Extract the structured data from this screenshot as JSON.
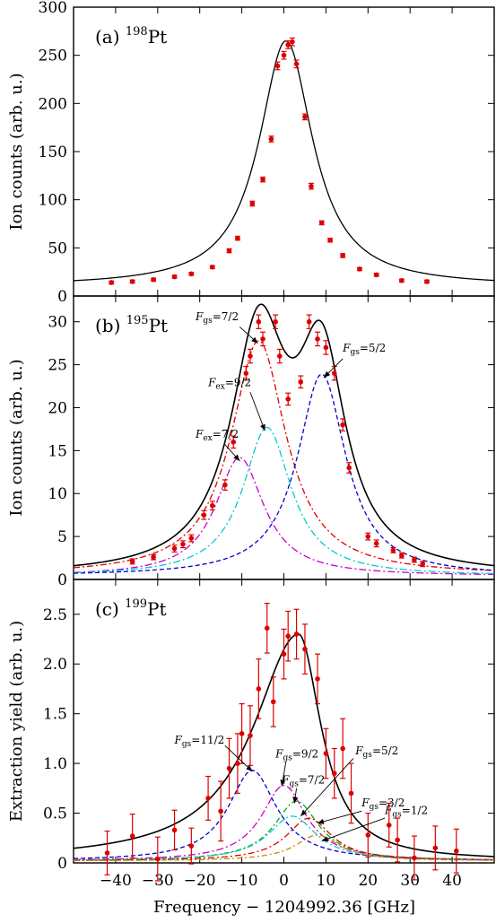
{
  "figure": {
    "xlabel": "Frequency − 1204992.36 [GHz]"
  },
  "chart_data": [
    {
      "type": "scatter",
      "panel_label": "(a)",
      "isotope_mass": "198",
      "isotope_symbol": "Pt",
      "ylabel": "Ion counts (arb. u.)",
      "xlim": [
        -50,
        50
      ],
      "ylim": [
        0,
        300
      ],
      "yticks": [
        0,
        50,
        100,
        150,
        200,
        250,
        300
      ],
      "data_points": [
        {
          "x": -41,
          "y": 14,
          "err": 1.5
        },
        {
          "x": -36,
          "y": 15,
          "err": 1.5
        },
        {
          "x": -31,
          "y": 17,
          "err": 1.5
        },
        {
          "x": -26,
          "y": 20,
          "err": 1.5
        },
        {
          "x": -22,
          "y": 23,
          "err": 1.5
        },
        {
          "x": -17,
          "y": 30,
          "err": 1.5
        },
        {
          "x": -13,
          "y": 47,
          "err": 2
        },
        {
          "x": -11,
          "y": 60,
          "err": 2
        },
        {
          "x": -7.5,
          "y": 96,
          "err": 2.5
        },
        {
          "x": -5,
          "y": 121,
          "err": 2.5
        },
        {
          "x": -3,
          "y": 163,
          "err": 3
        },
        {
          "x": -1.5,
          "y": 239,
          "err": 4
        },
        {
          "x": 0,
          "y": 250,
          "err": 4
        },
        {
          "x": 1,
          "y": 261,
          "err": 4
        },
        {
          "x": 2,
          "y": 264,
          "err": 4
        },
        {
          "x": 3,
          "y": 241,
          "err": 4
        },
        {
          "x": 5,
          "y": 186,
          "err": 3
        },
        {
          "x": 6.5,
          "y": 114,
          "err": 3
        },
        {
          "x": 9,
          "y": 76,
          "err": 2
        },
        {
          "x": 11,
          "y": 58,
          "err": 2
        },
        {
          "x": 14,
          "y": 42,
          "err": 2
        },
        {
          "x": 18,
          "y": 28,
          "err": 1.5
        },
        {
          "x": 22,
          "y": 22,
          "err": 1.5
        },
        {
          "x": 28,
          "y": 16,
          "err": 1.5
        },
        {
          "x": 34,
          "y": 15,
          "err": 1.5
        }
      ],
      "fit_curves": [
        {
          "name": "total",
          "color": "#000000",
          "dash": "",
          "center": 0.5,
          "amplitude": 255,
          "hwhm": 7.8,
          "offset": 10
        }
      ],
      "annotations": []
    },
    {
      "type": "scatter",
      "panel_label": "(b)",
      "isotope_mass": "195",
      "isotope_symbol": "Pt",
      "ylabel": "Ion counts (arb. u.)",
      "xlim": [
        -50,
        50
      ],
      "ylim": [
        0,
        33
      ],
      "yticks": [
        0,
        5,
        10,
        15,
        20,
        25,
        30
      ],
      "data_points": [
        {
          "x": -36,
          "y": 2.1,
          "err": 0.3
        },
        {
          "x": -31,
          "y": 2.6,
          "err": 0.3
        },
        {
          "x": -26,
          "y": 3.6,
          "err": 0.4
        },
        {
          "x": -24,
          "y": 4.1,
          "err": 0.4
        },
        {
          "x": -22,
          "y": 4.8,
          "err": 0.4
        },
        {
          "x": -19,
          "y": 7.5,
          "err": 0.5
        },
        {
          "x": -17,
          "y": 8.6,
          "err": 0.5
        },
        {
          "x": -14,
          "y": 11,
          "err": 0.6
        },
        {
          "x": -12,
          "y": 16,
          "err": 0.7
        },
        {
          "x": -9,
          "y": 24,
          "err": 0.8
        },
        {
          "x": -8,
          "y": 26,
          "err": 0.8
        },
        {
          "x": -6,
          "y": 30,
          "err": 0.8
        },
        {
          "x": -5,
          "y": 28,
          "err": 0.8
        },
        {
          "x": -2,
          "y": 30,
          "err": 0.8
        },
        {
          "x": -1,
          "y": 26,
          "err": 0.8
        },
        {
          "x": 1,
          "y": 21,
          "err": 0.7
        },
        {
          "x": 4,
          "y": 23,
          "err": 0.7
        },
        {
          "x": 6,
          "y": 30,
          "err": 0.8
        },
        {
          "x": 8,
          "y": 28,
          "err": 0.8
        },
        {
          "x": 10,
          "y": 27,
          "err": 0.8
        },
        {
          "x": 12,
          "y": 24,
          "err": 0.8
        },
        {
          "x": 14,
          "y": 18,
          "err": 0.7
        },
        {
          "x": 15.5,
          "y": 13,
          "err": 0.6
        },
        {
          "x": 20,
          "y": 5,
          "err": 0.4
        },
        {
          "x": 22,
          "y": 4.2,
          "err": 0.4
        },
        {
          "x": 26,
          "y": 3.4,
          "err": 0.3
        },
        {
          "x": 28,
          "y": 2.8,
          "err": 0.3
        },
        {
          "x": 31,
          "y": 2.3,
          "err": 0.3
        },
        {
          "x": 33,
          "y": 1.8,
          "err": 0.3
        }
      ],
      "fit_curves": [
        {
          "name": "Fex=7/2",
          "color": "#cc00cc",
          "dash": "8,3,2,3",
          "center": -10.5,
          "amplitude": 13.8,
          "hwhm": 7,
          "offset": 0.4
        },
        {
          "name": "Fex=9/2",
          "color": "#00cccc",
          "dash": "8,3,2,3",
          "center": -4,
          "amplitude": 17.3,
          "hwhm": 7,
          "offset": 0.4
        },
        {
          "name": "Fgs=7/2",
          "color": "#dd0000",
          "dash": "7,3,2,3",
          "center": -6,
          "amplitude": 27.3,
          "hwhm": 8,
          "offset": 0.5
        },
        {
          "name": "Fgs=5/2",
          "color": "#0000cc",
          "dash": "5,3",
          "center": 9,
          "amplitude": 23.5,
          "hwhm": 7,
          "offset": 0.4
        }
      ],
      "total_curve": {
        "color": "#000000",
        "components": [
          2,
          3
        ],
        "offset": 0.4
      },
      "annotations": [
        {
          "main": "F",
          "sub": "gs",
          "rest": "=7/2",
          "text_x": -21,
          "text_y": 30.2,
          "arrow_from": [
            -10.5,
            29.4
          ],
          "arrow_to": [
            -6.2,
            27.5
          ]
        },
        {
          "main": "F",
          "sub": "ex",
          "rest": "=9/2",
          "text_x": -18,
          "text_y": 22.5,
          "arrow_from": [
            -8,
            21.8
          ],
          "arrow_to": [
            -4.5,
            17.3
          ]
        },
        {
          "main": "F",
          "sub": "ex",
          "rest": "=7/2",
          "text_x": -21,
          "text_y": 16.5,
          "arrow_from": [
            -14,
            15.7
          ],
          "arrow_to": [
            -10.5,
            13.8
          ]
        },
        {
          "main": "F",
          "sub": "gs",
          "rest": "=5/2",
          "text_x": 14,
          "text_y": 26.5,
          "arrow_from": [
            14,
            25.7
          ],
          "arrow_to": [
            9.5,
            23.5
          ]
        }
      ]
    },
    {
      "type": "scatter",
      "panel_label": "(c)",
      "isotope_mass": "199",
      "isotope_symbol": "Pt",
      "ylabel": "Extraction yield (arb. u.)",
      "xlim": [
        -50,
        50
      ],
      "ylim": [
        0,
        2.85
      ],
      "yticks": [
        0,
        0.5,
        1.0,
        1.5,
        2.0,
        2.5
      ],
      "ytick_labels": [
        "0",
        "0.5",
        "1.0",
        "1.5",
        "2.0",
        "2.5"
      ],
      "xticks": [
        -40,
        -30,
        -20,
        -10,
        0,
        10,
        20,
        30,
        40
      ],
      "xtick_labels": [
        "−40",
        "−30",
        "−20",
        "−10",
        "0",
        "10",
        "20",
        "30",
        "40"
      ],
      "data_points": [
        {
          "x": -42,
          "y": 0.1,
          "err": 0.22
        },
        {
          "x": -36,
          "y": 0.27,
          "err": 0.22
        },
        {
          "x": -30,
          "y": 0.04,
          "err": 0.22
        },
        {
          "x": -26,
          "y": 0.33,
          "err": 0.2
        },
        {
          "x": -22,
          "y": 0.17,
          "err": 0.18
        },
        {
          "x": -18,
          "y": 0.65,
          "err": 0.22
        },
        {
          "x": -15,
          "y": 0.52,
          "err": 0.3
        },
        {
          "x": -13,
          "y": 0.95,
          "err": 0.3
        },
        {
          "x": -11,
          "y": 1.0,
          "err": 0.3
        },
        {
          "x": -10,
          "y": 1.3,
          "err": 0.3
        },
        {
          "x": -8,
          "y": 1.28,
          "err": 0.3
        },
        {
          "x": -6,
          "y": 1.75,
          "err": 0.3
        },
        {
          "x": -4,
          "y": 2.36,
          "err": 0.25
        },
        {
          "x": -2.5,
          "y": 1.62,
          "err": 0.25
        },
        {
          "x": 0,
          "y": 2.1,
          "err": 0.25
        },
        {
          "x": 1,
          "y": 2.28,
          "err": 0.25
        },
        {
          "x": 3,
          "y": 2.3,
          "err": 0.25
        },
        {
          "x": 5,
          "y": 2.15,
          "err": 0.25
        },
        {
          "x": 8,
          "y": 1.85,
          "err": 0.25
        },
        {
          "x": 10,
          "y": 1.1,
          "err": 0.25
        },
        {
          "x": 12,
          "y": 0.9,
          "err": 0.25
        },
        {
          "x": 14,
          "y": 1.15,
          "err": 0.3
        },
        {
          "x": 16,
          "y": 0.7,
          "err": 0.3
        },
        {
          "x": 20,
          "y": 0.28,
          "err": 0.22
        },
        {
          "x": 25,
          "y": 0.38,
          "err": 0.22
        },
        {
          "x": 27,
          "y": 0.23,
          "err": 0.22
        },
        {
          "x": 31,
          "y": 0.05,
          "err": 0.22
        },
        {
          "x": 36,
          "y": 0.15,
          "err": 0.22
        },
        {
          "x": 41,
          "y": 0.12,
          "err": 0.22
        }
      ],
      "fit_curves": [
        {
          "name": "Fgs=11/2",
          "color": "#0000cc",
          "dash": "5,3",
          "center": -7.5,
          "amplitude": 0.91,
          "hwhm": 7,
          "offset": 0.02
        },
        {
          "name": "Fgs=9/2",
          "color": "#cc00cc",
          "dash": "8,3,2,3",
          "center": 0,
          "amplitude": 0.76,
          "hwhm": 6.5,
          "offset": 0.02
        },
        {
          "name": "Fgs=7/2",
          "color": "#00aa00",
          "dash": "6,3,2,3",
          "center": 3,
          "amplitude": 0.6,
          "hwhm": 6.5,
          "offset": 0.02
        },
        {
          "name": "Fgs=5/2",
          "color": "#00cccc",
          "dash": "7,3,2,3",
          "center": 2,
          "amplitude": 0.45,
          "hwhm": 7,
          "offset": 0.02
        },
        {
          "name": "Fgs=3/2",
          "color": "#dd0000",
          "dash": "7,3,2,3",
          "center": 6,
          "amplitude": 0.43,
          "hwhm": 6.5,
          "offset": 0.02
        },
        {
          "name": "Fgs=1/2",
          "color": "#cc8800",
          "dash": "6,3,2,3",
          "center": 8,
          "amplitude": 0.26,
          "hwhm": 6.5,
          "offset": 0.02
        }
      ],
      "total_curve": {
        "color": "#000000",
        "shape": "asymmetric",
        "center": 3.5,
        "amplitude": 2.28,
        "hwhm_left": 13,
        "hwhm_right": 6.5,
        "offset": 0.02
      },
      "annotations": [
        {
          "main": "F",
          "sub": "gs",
          "rest": "=11/2",
          "text_x": -26,
          "text_y": 1.2,
          "arrow_from": [
            -14,
            1.18
          ],
          "arrow_to": [
            -7.5,
            0.92
          ]
        },
        {
          "main": "F",
          "sub": "gs",
          "rest": "=9/2",
          "text_x": -2,
          "text_y": 1.06,
          "arrow_from": [
            0.5,
            1.02
          ],
          "arrow_to": [
            -0.5,
            0.77
          ]
        },
        {
          "main": "F",
          "sub": "gs",
          "rest": "=7/2",
          "text_x": -0.5,
          "text_y": 0.8,
          "arrow_from": [
            3,
            0.75
          ],
          "arrow_to": [
            2.5,
            0.6
          ]
        },
        {
          "main": "F",
          "sub": "gs",
          "rest": "=5/2",
          "text_x": 17,
          "text_y": 1.09,
          "arrow_from": [
            16.5,
            1.05
          ],
          "arrow_to": [
            4,
            0.47
          ]
        },
        {
          "main": "F",
          "sub": "gs",
          "rest": "=3/2",
          "text_x": 18.5,
          "text_y": 0.57,
          "arrow_from": [
            18.5,
            0.52
          ],
          "arrow_to": [
            8,
            0.4
          ]
        },
        {
          "main": "F",
          "sub": "gs",
          "rest": "=1/2",
          "text_x": 24,
          "text_y": 0.49,
          "arrow_from": [
            24,
            0.45
          ],
          "arrow_to": [
            9,
            0.22
          ]
        }
      ]
    }
  ]
}
